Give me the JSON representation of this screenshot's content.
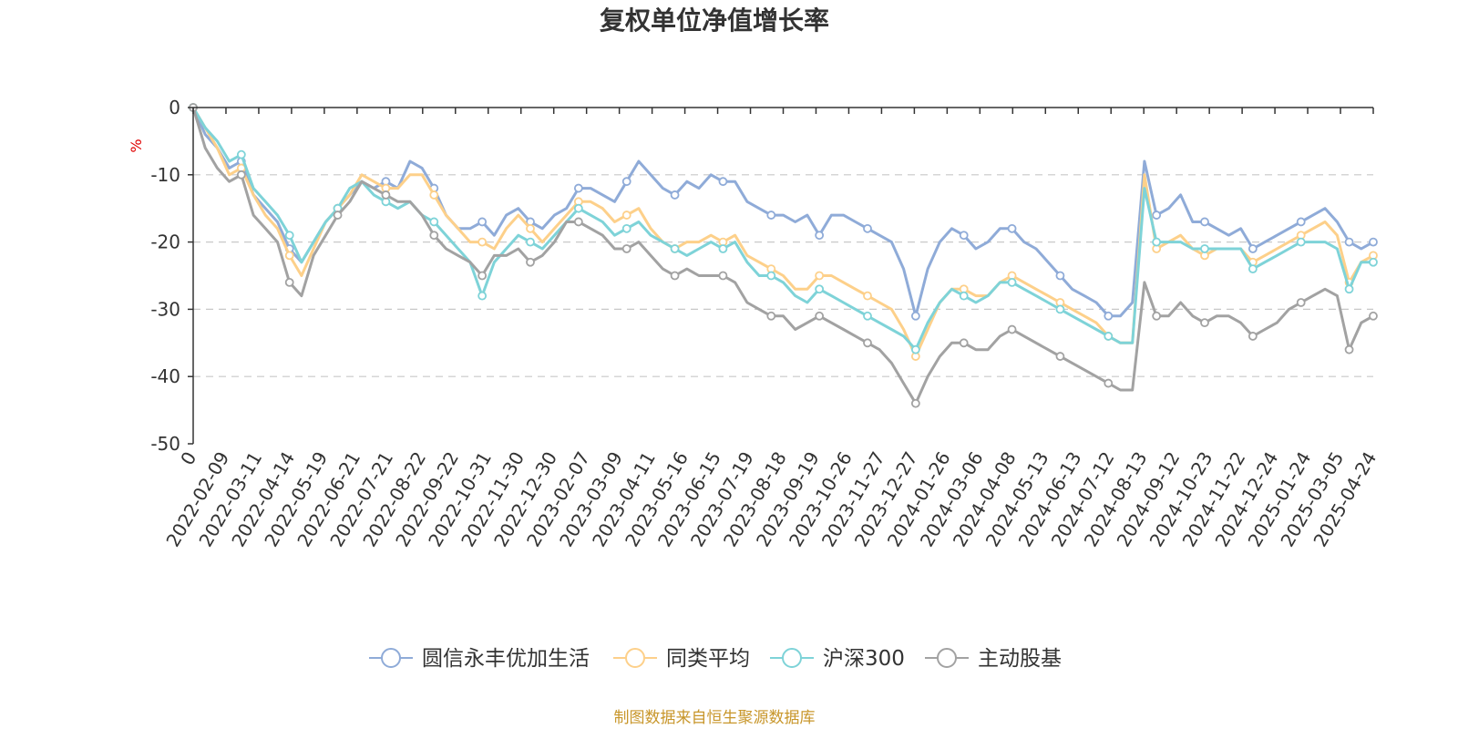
{
  "chart_data": {
    "type": "line",
    "title": "复权单位净值增长率",
    "ylabel": "%",
    "xlabel": "",
    "ylim": [
      -50,
      0
    ],
    "yticks": [
      0,
      -10,
      -20,
      -30,
      -40,
      -50
    ],
    "x_tick_labels": [
      "2022-02-09",
      "2022-03-11",
      "2022-04-14",
      "2022-05-19",
      "2022-06-21",
      "2022-07-21",
      "2022-08-22",
      "2022-09-22",
      "2022-10-31",
      "2022-11-30",
      "2022-12-30",
      "2023-02-07",
      "2023-03-09",
      "2023-04-11",
      "2023-05-16",
      "2023-06-15",
      "2023-07-19",
      "2023-08-18",
      "2023-09-19",
      "2023-10-26",
      "2023-11-27",
      "2023-12-27",
      "2024-01-26",
      "2024-03-06",
      "2024-04-08",
      "2024-05-13",
      "2024-06-13",
      "2024-07-12",
      "2024-08-13",
      "2024-09-12",
      "2024-10-23",
      "2024-11-22",
      "2024-12-24",
      "2025-01-24",
      "2025-03-05",
      "2025-04-24"
    ],
    "x_first_label": "0",
    "grid": true,
    "legend_position": "bottom",
    "source_note": "制图数据来自恒生聚源数据库",
    "series": [
      {
        "name": "圆信永丰优加生活",
        "color": "#8fabd8",
        "values": [
          0,
          -4,
          -6,
          -9,
          -8,
          -13,
          -15,
          -17,
          -21,
          -23,
          -20,
          -17,
          -15,
          -13,
          -11,
          -12,
          -11,
          -12,
          -8,
          -9,
          -12,
          -16,
          -18,
          -18,
          -17,
          -19,
          -16,
          -15,
          -17,
          -18,
          -16,
          -15,
          -12,
          -12,
          -13,
          -14,
          -11,
          -8,
          -10,
          -12,
          -13,
          -11,
          -12,
          -10,
          -11,
          -11,
          -14,
          -15,
          -16,
          -16,
          -17,
          -16,
          -19,
          -16,
          -16,
          -17,
          -18,
          -19,
          -20,
          -24,
          -31,
          -24,
          -20,
          -18,
          -19,
          -21,
          -20,
          -18,
          -18,
          -20,
          -21,
          -23,
          -25,
          -27,
          -28,
          -29,
          -31,
          -31,
          -29,
          -8,
          -16,
          -15,
          -13,
          -17,
          -17,
          -18,
          -19,
          -18,
          -21,
          -20,
          -19,
          -18,
          -17,
          -16,
          -15,
          -17,
          -20,
          -21,
          -20
        ]
      },
      {
        "name": "同类平均",
        "color": "#fdd08a",
        "values": [
          0,
          -3,
          -6,
          -10,
          -9,
          -13,
          -16,
          -18,
          -22,
          -25,
          -21,
          -17,
          -15,
          -13,
          -10,
          -11,
          -12,
          -12,
          -10,
          -10,
          -13,
          -16,
          -18,
          -20,
          -20,
          -21,
          -18,
          -16,
          -18,
          -20,
          -18,
          -16,
          -14,
          -14,
          -15,
          -17,
          -16,
          -15,
          -18,
          -20,
          -21,
          -20,
          -20,
          -19,
          -20,
          -19,
          -22,
          -23,
          -24,
          -25,
          -27,
          -27,
          -25,
          -25,
          -26,
          -27,
          -28,
          -29,
          -30,
          -33,
          -37,
          -33,
          -29,
          -27,
          -27,
          -28,
          -28,
          -26,
          -25,
          -26,
          -27,
          -28,
          -29,
          -30,
          -31,
          -32,
          -34,
          -35,
          -35,
          -10,
          -21,
          -20,
          -19,
          -21,
          -22,
          -21,
          -21,
          -21,
          -23,
          -22,
          -21,
          -20,
          -19,
          -18,
          -17,
          -19,
          -26,
          -23,
          -22
        ]
      },
      {
        "name": "沪深300",
        "color": "#7ed3d8",
        "values": [
          0,
          -3,
          -5,
          -8,
          -7,
          -12,
          -14,
          -16,
          -19,
          -23,
          -20,
          -17,
          -15,
          -12,
          -11,
          -13,
          -14,
          -15,
          -14,
          -16,
          -17,
          -19,
          -21,
          -23,
          -28,
          -23,
          -21,
          -19,
          -20,
          -21,
          -19,
          -17,
          -15,
          -16,
          -17,
          -19,
          -18,
          -17,
          -19,
          -20,
          -21,
          -22,
          -21,
          -20,
          -21,
          -20,
          -23,
          -25,
          -25,
          -26,
          -28,
          -29,
          -27,
          -28,
          -29,
          -30,
          -31,
          -32,
          -33,
          -34,
          -36,
          -32,
          -29,
          -27,
          -28,
          -29,
          -28,
          -26,
          -26,
          -27,
          -28,
          -29,
          -30,
          -31,
          -32,
          -33,
          -34,
          -35,
          -35,
          -12,
          -20,
          -20,
          -20,
          -21,
          -21,
          -21,
          -21,
          -21,
          -24,
          -23,
          -22,
          -21,
          -20,
          -20,
          -20,
          -21,
          -27,
          -23,
          -23
        ]
      },
      {
        "name": "主动股基",
        "color": "#a2a2a2",
        "values": [
          0,
          -6,
          -9,
          -11,
          -10,
          -16,
          -18,
          -20,
          -26,
          -28,
          -22,
          -19,
          -16,
          -14,
          -11,
          -12,
          -13,
          -14,
          -14,
          -16,
          -19,
          -21,
          -22,
          -23,
          -25,
          -22,
          -22,
          -21,
          -23,
          -22,
          -20,
          -17,
          -17,
          -18,
          -19,
          -21,
          -21,
          -20,
          -22,
          -24,
          -25,
          -24,
          -25,
          -25,
          -25,
          -26,
          -29,
          -30,
          -31,
          -31,
          -33,
          -32,
          -31,
          -32,
          -33,
          -34,
          -35,
          -36,
          -38,
          -41,
          -44,
          -40,
          -37,
          -35,
          -35,
          -36,
          -36,
          -34,
          -33,
          -34,
          -35,
          -36,
          -37,
          -38,
          -39,
          -40,
          -41,
          -42,
          -42,
          -26,
          -31,
          -31,
          -29,
          -31,
          -32,
          -31,
          -31,
          -32,
          -34,
          -33,
          -32,
          -30,
          -29,
          -28,
          -27,
          -28,
          -36,
          -32,
          -31
        ]
      }
    ]
  }
}
